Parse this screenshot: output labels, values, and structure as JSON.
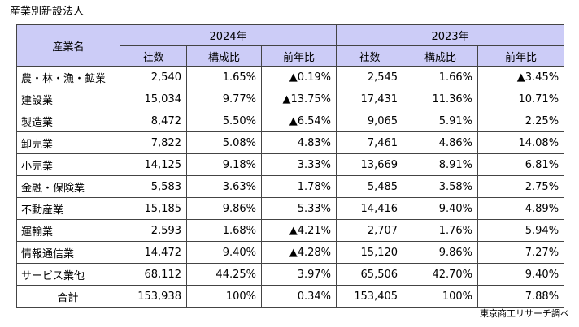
{
  "caption": "産業別新設法人",
  "table": {
    "row_header": "産業名",
    "years": [
      "2024年",
      "2023年"
    ],
    "sub_headers": [
      "社数",
      "構成比",
      "前年比",
      "社数",
      "構成比",
      "前年比"
    ],
    "rows": [
      {
        "name": "農・林・漁・鉱業",
        "cells": [
          "2,540",
          "1.65%",
          "▲0.19%",
          "2,545",
          "1.66%",
          "▲3.45%"
        ]
      },
      {
        "name": "建設業",
        "cells": [
          "15,034",
          "9.77%",
          "▲13.75%",
          "17,431",
          "11.36%",
          "10.71%"
        ]
      },
      {
        "name": "製造業",
        "cells": [
          "8,472",
          "5.50%",
          "▲6.54%",
          "9,065",
          "5.91%",
          "2.25%"
        ]
      },
      {
        "name": "卸売業",
        "cells": [
          "7,822",
          "5.08%",
          "4.83%",
          "7,461",
          "4.86%",
          "14.08%"
        ]
      },
      {
        "name": "小売業",
        "cells": [
          "14,125",
          "9.18%",
          "3.33%",
          "13,669",
          "8.91%",
          "6.81%"
        ]
      },
      {
        "name": "金融・保険業",
        "cells": [
          "5,583",
          "3.63%",
          "1.78%",
          "5,485",
          "3.58%",
          "2.75%"
        ]
      },
      {
        "name": "不動産業",
        "cells": [
          "15,185",
          "9.86%",
          "5.33%",
          "14,416",
          "9.40%",
          "4.89%"
        ]
      },
      {
        "name": "運輸業",
        "cells": [
          "2,593",
          "1.68%",
          "▲4.21%",
          "2,707",
          "1.76%",
          "5.94%"
        ]
      },
      {
        "name": "情報通信業",
        "cells": [
          "14,472",
          "9.40%",
          "▲4.28%",
          "15,120",
          "9.86%",
          "7.27%"
        ]
      },
      {
        "name": "サービス業他",
        "cells": [
          "68,112",
          "44.25%",
          "3.97%",
          "65,506",
          "42.70%",
          "9.40%"
        ]
      }
    ],
    "total": {
      "name": "合計",
      "cells": [
        "153,938",
        "100%",
        "0.34%",
        "153,405",
        "100%",
        "7.88%"
      ]
    }
  },
  "source": "東京商工リサーチ調べ",
  "colors": {
    "header_background": "#ccccf7",
    "border": "#444444"
  }
}
